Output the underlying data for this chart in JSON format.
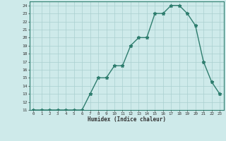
{
  "x": [
    0,
    1,
    2,
    3,
    4,
    5,
    6,
    7,
    8,
    9,
    10,
    11,
    12,
    13,
    14,
    15,
    16,
    17,
    18,
    19,
    20,
    21,
    22,
    23
  ],
  "y": [
    11,
    11,
    11,
    11,
    11,
    11,
    11,
    13,
    15,
    15,
    16.5,
    16.5,
    19,
    20,
    20,
    23,
    23,
    24,
    24,
    23,
    21.5,
    17,
    14.5,
    13
  ],
  "xlabel": "Humidex (Indice chaleur)",
  "ylim": [
    11,
    24.5
  ],
  "xlim": [
    -0.5,
    23.5
  ],
  "yticks": [
    11,
    12,
    13,
    14,
    15,
    16,
    17,
    18,
    19,
    20,
    21,
    22,
    23,
    24
  ],
  "xticks": [
    0,
    1,
    2,
    3,
    4,
    5,
    6,
    7,
    8,
    9,
    10,
    11,
    12,
    13,
    14,
    15,
    16,
    17,
    18,
    19,
    20,
    21,
    22,
    23
  ],
  "line_color": "#2e7d6e",
  "bg_color": "#ceeaea",
  "grid_color": "#aacfcf",
  "marker": "*",
  "marker_size": 3.5,
  "linewidth": 1.0
}
